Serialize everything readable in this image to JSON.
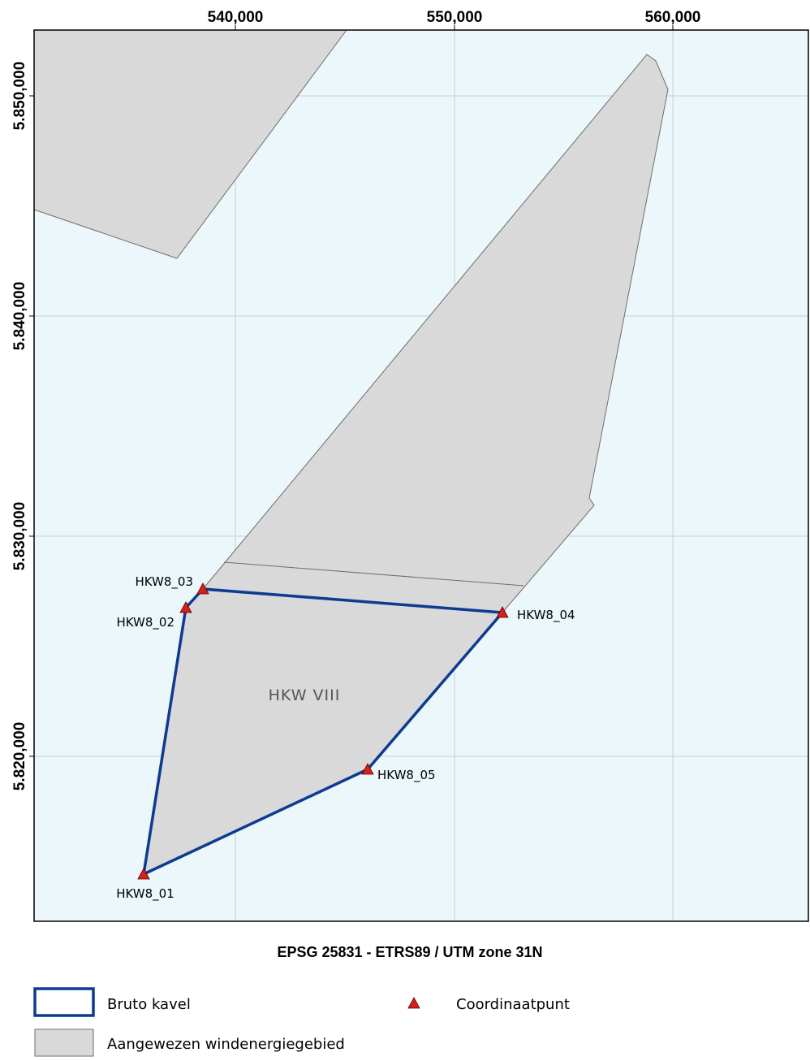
{
  "map": {
    "x_ticks": [
      "540,000",
      "550,000",
      "560,000"
    ],
    "y_ticks": [
      "5.850,000",
      "5.840,000",
      "5.830,000",
      "5.820,000"
    ],
    "area_label": "HKW VIII",
    "crs_label": "EPSG 25831 - ETRS89 / UTM zone 31N",
    "points": [
      {
        "name": "HKW8_01"
      },
      {
        "name": "HKW8_02"
      },
      {
        "name": "HKW8_03"
      },
      {
        "name": "HKW8_04"
      },
      {
        "name": "HKW8_05"
      }
    ],
    "colors": {
      "sea": "#ebf7fb",
      "area_fill": "#d9d9d9",
      "area_stroke": "#6e6e6e",
      "kavel_stroke": "#0d3b91",
      "point_fill": "#d91e1e",
      "grid": "#c8cfd3"
    }
  },
  "legend": {
    "bruto_kavel": "Bruto kavel",
    "windgebied": "Aangewezen windenergiegebied",
    "coordinaatpunt": "Coordinaatpunt"
  }
}
